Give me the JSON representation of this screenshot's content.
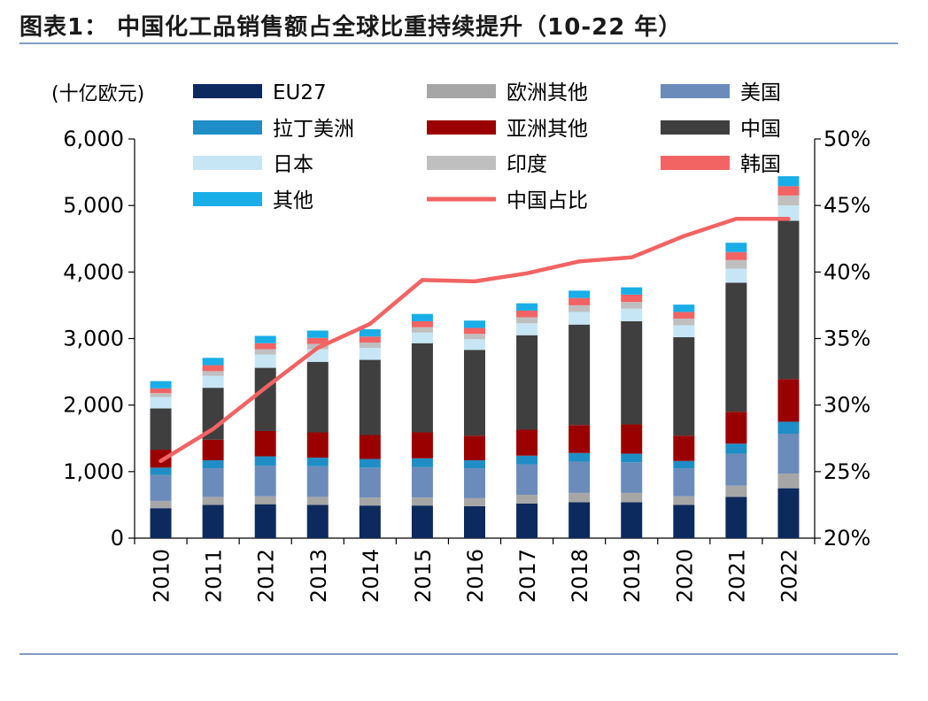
{
  "title": "图表1：  中国化工品销售额占全球比重持续提升（10-22 年）",
  "chart_data": {
    "type": "bar",
    "stacked": true,
    "unit_label": "(十亿欧元)",
    "categories": [
      "2010",
      "2011",
      "2012",
      "2013",
      "2014",
      "2015",
      "2016",
      "2017",
      "2018",
      "2019",
      "2020",
      "2021",
      "2022"
    ],
    "y_left": {
      "range": [
        0,
        6000
      ],
      "ticks": [
        0,
        1000,
        2000,
        3000,
        4000,
        5000,
        6000
      ],
      "tick_labels": [
        "0",
        "1,000",
        "2,000",
        "3,000",
        "4,000",
        "5,000",
        "6,000"
      ]
    },
    "y_right": {
      "range": [
        20,
        50
      ],
      "ticks": [
        20,
        25,
        30,
        35,
        40,
        45,
        50
      ],
      "tick_labels": [
        "20%",
        "25%",
        "30%",
        "35%",
        "40%",
        "45%",
        "50%"
      ]
    },
    "series": [
      {
        "name": "EU27",
        "color": "#0c2a5e",
        "values": [
          450,
          500,
          510,
          500,
          490,
          490,
          480,
          520,
          540,
          540,
          500,
          620,
          750
        ]
      },
      {
        "name": "欧洲其他",
        "color": "#a6a6a6",
        "values": [
          110,
          120,
          120,
          120,
          120,
          120,
          120,
          130,
          140,
          140,
          130,
          170,
          220
        ]
      },
      {
        "name": "美国",
        "color": "#6b8cba",
        "values": [
          390,
          430,
          460,
          460,
          450,
          460,
          450,
          460,
          470,
          460,
          420,
          480,
          600
        ]
      },
      {
        "name": "拉丁美洲",
        "color": "#1f8ec6",
        "values": [
          110,
          120,
          140,
          130,
          130,
          130,
          120,
          130,
          130,
          130,
          110,
          150,
          180
        ]
      },
      {
        "name": "亚洲其他",
        "color": "#9b0000",
        "values": [
          270,
          310,
          380,
          380,
          360,
          390,
          370,
          390,
          420,
          440,
          380,
          480,
          640
        ]
      },
      {
        "name": "中国",
        "color": "#3f3f3f",
        "values": [
          620,
          780,
          950,
          1060,
          1130,
          1340,
          1290,
          1420,
          1510,
          1550,
          1480,
          1940,
          2380
        ]
      },
      {
        "name": "日本",
        "color": "#c6e6f5",
        "values": [
          170,
          180,
          200,
          190,
          180,
          160,
          160,
          180,
          190,
          190,
          180,
          210,
          230
        ]
      },
      {
        "name": "印度",
        "color": "#bfbfbf",
        "values": [
          60,
          70,
          80,
          80,
          80,
          80,
          80,
          90,
          100,
          100,
          100,
          130,
          150
        ]
      },
      {
        "name": "韩国",
        "color": "#f26363",
        "values": [
          70,
          90,
          90,
          90,
          90,
          90,
          90,
          100,
          110,
          110,
          100,
          120,
          140
        ]
      },
      {
        "name": "其他",
        "color": "#19aee8",
        "values": [
          110,
          110,
          110,
          110,
          110,
          110,
          110,
          110,
          110,
          110,
          110,
          140,
          150
        ]
      }
    ],
    "line": {
      "name": "中国占比",
      "color": "#f26363",
      "values": [
        25.8,
        28.2,
        31.3,
        34.3,
        36.1,
        39.4,
        39.3,
        39.9,
        40.8,
        41.1,
        42.7,
        44.0,
        44.0
      ]
    }
  }
}
